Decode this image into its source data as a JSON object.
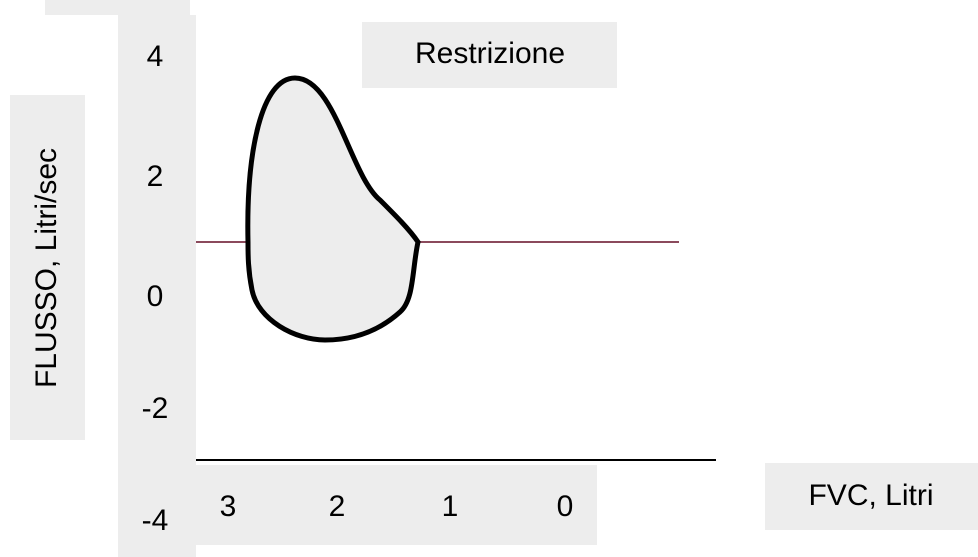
{
  "title": "Restrizione",
  "y_axis_label": "FLUSSO, Litri/sec",
  "x_axis_label": "FVC, Litri",
  "y_ticks": [
    "4",
    "2",
    "0",
    "-2",
    "-4"
  ],
  "x_ticks": [
    "3",
    "2",
    "1",
    "0"
  ]
}
